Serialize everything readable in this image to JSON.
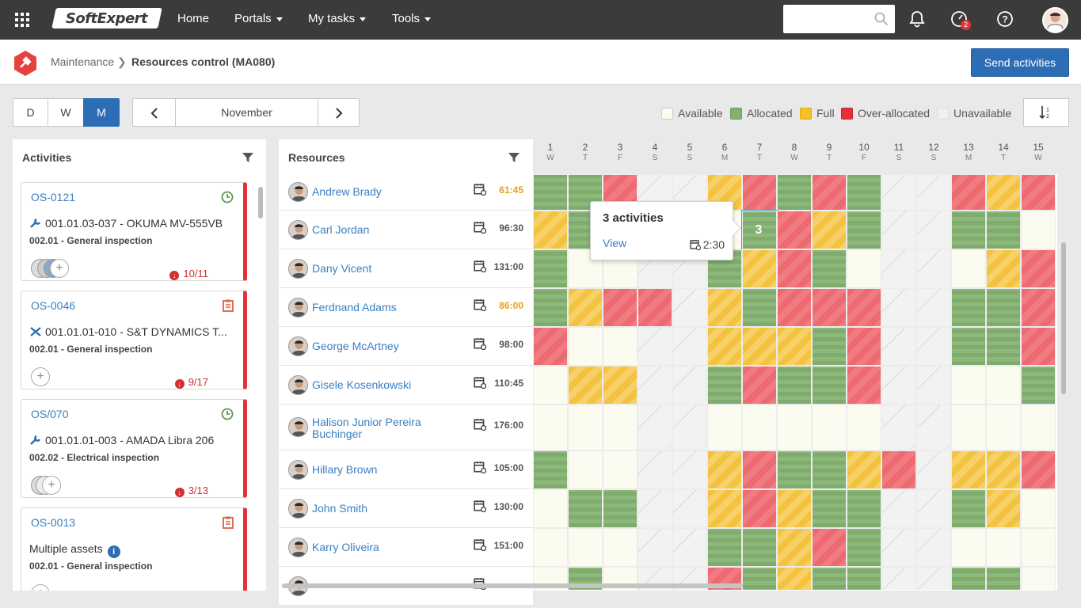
{
  "topbar": {
    "brand": "SoftExpert",
    "nav": [
      {
        "label": "Home"
      },
      {
        "label": "Portals"
      },
      {
        "label": "My tasks"
      },
      {
        "label": "Tools"
      }
    ],
    "search_placeholder": "",
    "notification_count": "2"
  },
  "header": {
    "breadcrumb_parent": "Maintenance",
    "breadcrumb_current": "Resources control (MA080)",
    "send_label": "Send activities"
  },
  "toolbar": {
    "views": [
      "D",
      "W",
      "M"
    ],
    "active_view": "M",
    "period": "November"
  },
  "legend": [
    {
      "label": "Available",
      "color": "#fbfbef"
    },
    {
      "label": "Allocated",
      "color": "#84b072"
    },
    {
      "label": "Full",
      "color": "#f3bf2a"
    },
    {
      "label": "Over-allocated",
      "color": "#e53238"
    },
    {
      "label": "Unavailable",
      "color": "#f0f0f0"
    }
  ],
  "activities": {
    "title": "Activities",
    "cards": [
      {
        "code": "OS-0121",
        "asset": "001.01.03-037 - OKUMA MV-555VB",
        "inspection": "002.01 - General inspection",
        "due": "10/11",
        "status_icon": "clock-icon",
        "asset_icon": "wrench-icon"
      },
      {
        "code": "OS-0046",
        "asset": "001.01.01-010 - S&T DYNAMICS T...",
        "inspection": "002.01 - General inspection",
        "due": "9/17",
        "status_icon": "clipboard-icon",
        "asset_icon": "tools-icon"
      },
      {
        "code": "OS/070",
        "asset": "001.01.01-003 - AMADA Libra 206",
        "inspection": "002.02 - Electrical inspection",
        "due": "3/13",
        "status_icon": "clock-icon",
        "asset_icon": "wrench-icon"
      },
      {
        "code": "OS-0013",
        "asset": "Multiple assets",
        "inspection": "002.01 - General inspection",
        "due": "",
        "status_icon": "clipboard-icon",
        "asset_icon": "info-icon"
      }
    ]
  },
  "resources": {
    "title": "Resources",
    "days": [
      {
        "n": "1",
        "d": "W"
      },
      {
        "n": "2",
        "d": "T"
      },
      {
        "n": "3",
        "d": "F"
      },
      {
        "n": "4",
        "d": "S"
      },
      {
        "n": "5",
        "d": "S"
      },
      {
        "n": "6",
        "d": "M"
      },
      {
        "n": "7",
        "d": "T"
      },
      {
        "n": "8",
        "d": "W"
      },
      {
        "n": "9",
        "d": "T"
      },
      {
        "n": "10",
        "d": "F"
      },
      {
        "n": "11",
        "d": "S"
      },
      {
        "n": "12",
        "d": "S"
      },
      {
        "n": "13",
        "d": "M"
      },
      {
        "n": "14",
        "d": "T"
      },
      {
        "n": "15",
        "d": "W"
      }
    ],
    "rows": [
      {
        "name": "Andrew Brady",
        "hours": "61:45",
        "warn": true,
        "cells": "GGOUUFOGOGUUOFO"
      },
      {
        "name": "Carl Jordan",
        "hours": "96:30",
        "warn": false,
        "cells": "FGAUUAGOFGUUGGA"
      },
      {
        "name": "Dany Vicent",
        "hours": "131:00",
        "warn": false,
        "cells": "GAAUUGFOGAUUAFO"
      },
      {
        "name": "Ferdnand Adams",
        "hours": "86:00",
        "warn": true,
        "cells": "GFOOUFGOOOUUGGO"
      },
      {
        "name": "George McArtney",
        "hours": "98:00",
        "warn": false,
        "cells": "OAAUUFFFGOUUGGO"
      },
      {
        "name": "Gisele Kosenkowski",
        "hours": "110:45",
        "warn": false,
        "cells": "AFFUUGOGGOUUAAG"
      },
      {
        "name": "Halison Junior Pereira Buchinger",
        "hours": "176:00",
        "warn": false,
        "cells": "AAAUUAAAAAUUAAA"
      },
      {
        "name": "Hillary Brown",
        "hours": "105:00",
        "warn": false,
        "cells": "GAAUUFOGGFOUFFO"
      },
      {
        "name": "John Smith",
        "hours": "130:00",
        "warn": false,
        "cells": "AGGUUFOFGGUUGFA"
      },
      {
        "name": "Karry Oliveira",
        "hours": "151:00",
        "warn": false,
        "cells": "AAAUUGGFOGUUAAA"
      },
      {
        "name": "",
        "hours": "",
        "warn": false,
        "cells": "AGAUUOGFGGUUGGA"
      }
    ]
  },
  "tooltip": {
    "title": "3 activities",
    "view_label": "View",
    "hours": "2:30",
    "cell_count": "3"
  }
}
